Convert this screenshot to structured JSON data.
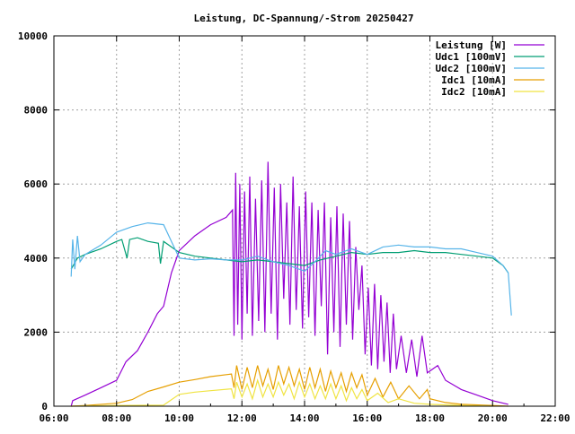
{
  "chart_data": {
    "type": "line",
    "title": "Leistung, DC-Spannung/-Strom 20250427",
    "xlabel": "",
    "ylabel": "",
    "xlim": [
      "06:00",
      "22:00"
    ],
    "ylim": [
      0,
      10000
    ],
    "xticks": [
      "06:00",
      "08:00",
      "10:00",
      "12:00",
      "14:00",
      "16:00",
      "18:00",
      "20:00",
      "22:00"
    ],
    "yticks": [
      "0",
      "2000",
      "4000",
      "6000",
      "8000",
      "10000"
    ],
    "grid": true,
    "legend": "top-right",
    "series": [
      {
        "name": "Leistung [W]",
        "color": "#9400d3",
        "points": [
          [
            "06:33",
            0
          ],
          [
            "06:36",
            150
          ],
          [
            "07:00",
            300
          ],
          [
            "07:30",
            500
          ],
          [
            "08:00",
            700
          ],
          [
            "08:18",
            1200
          ],
          [
            "08:40",
            1500
          ],
          [
            "09:00",
            2000
          ],
          [
            "09:18",
            2500
          ],
          [
            "09:30",
            2700
          ],
          [
            "09:45",
            3600
          ],
          [
            "10:00",
            4200
          ],
          [
            "10:30",
            4600
          ],
          [
            "11:00",
            4900
          ],
          [
            "11:30",
            5100
          ],
          [
            "11:42",
            5300
          ],
          [
            "11:45",
            1900
          ],
          [
            "11:48",
            6300
          ],
          [
            "11:52",
            2200
          ],
          [
            "11:56",
            6000
          ],
          [
            "12:00",
            1800
          ],
          [
            "12:05",
            5800
          ],
          [
            "12:10",
            2500
          ],
          [
            "12:15",
            6200
          ],
          [
            "12:20",
            1900
          ],
          [
            "12:26",
            5600
          ],
          [
            "12:32",
            2300
          ],
          [
            "12:38",
            6100
          ],
          [
            "12:44",
            2000
          ],
          [
            "12:50",
            6600
          ],
          [
            "12:56",
            2500
          ],
          [
            "13:02",
            5900
          ],
          [
            "13:08",
            1800
          ],
          [
            "13:14",
            6000
          ],
          [
            "13:20",
            2900
          ],
          [
            "13:26",
            5500
          ],
          [
            "13:32",
            2200
          ],
          [
            "13:38",
            6200
          ],
          [
            "13:44",
            2600
          ],
          [
            "13:50",
            5400
          ],
          [
            "13:56",
            2100
          ],
          [
            "14:02",
            5800
          ],
          [
            "14:08",
            2400
          ],
          [
            "14:14",
            5500
          ],
          [
            "14:20",
            1900
          ],
          [
            "14:26",
            5300
          ],
          [
            "14:32",
            2700
          ],
          [
            "14:38",
            5500
          ],
          [
            "14:44",
            1400
          ],
          [
            "14:50",
            5100
          ],
          [
            "14:56",
            2000
          ],
          [
            "15:02",
            5400
          ],
          [
            "15:08",
            1600
          ],
          [
            "15:14",
            5200
          ],
          [
            "15:20",
            2200
          ],
          [
            "15:26",
            5000
          ],
          [
            "15:32",
            1800
          ],
          [
            "15:38",
            4300
          ],
          [
            "15:44",
            2600
          ],
          [
            "15:50",
            3800
          ],
          [
            "15:56",
            1400
          ],
          [
            "16:02",
            3200
          ],
          [
            "16:08",
            1100
          ],
          [
            "16:14",
            3300
          ],
          [
            "16:20",
            1000
          ],
          [
            "16:26",
            3000
          ],
          [
            "16:32",
            1200
          ],
          [
            "16:38",
            2800
          ],
          [
            "16:44",
            900
          ],
          [
            "16:50",
            2500
          ],
          [
            "16:56",
            1000
          ],
          [
            "17:05",
            1900
          ],
          [
            "17:15",
            900
          ],
          [
            "17:25",
            1800
          ],
          [
            "17:35",
            800
          ],
          [
            "17:45",
            1900
          ],
          [
            "17:55",
            900
          ],
          [
            "18:15",
            1100
          ],
          [
            "18:30",
            700
          ],
          [
            "19:00",
            450
          ],
          [
            "19:30",
            300
          ],
          [
            "20:00",
            150
          ],
          [
            "20:30",
            50
          ]
        ]
      },
      {
        "name": "Udc1 [100mV]",
        "color": "#009e73",
        "points": [
          [
            "06:33",
            3700
          ],
          [
            "06:45",
            4000
          ],
          [
            "07:00",
            4100
          ],
          [
            "07:30",
            4250
          ],
          [
            "08:00",
            4450
          ],
          [
            "08:10",
            4500
          ],
          [
            "08:20",
            4000
          ],
          [
            "08:25",
            4500
          ],
          [
            "08:40",
            4550
          ],
          [
            "09:00",
            4450
          ],
          [
            "09:20",
            4400
          ],
          [
            "09:24",
            3850
          ],
          [
            "09:30",
            4450
          ],
          [
            "10:00",
            4150
          ],
          [
            "10:30",
            4050
          ],
          [
            "11:00",
            4000
          ],
          [
            "11:30",
            3950
          ],
          [
            "12:00",
            3900
          ],
          [
            "12:30",
            3950
          ],
          [
            "13:00",
            3900
          ],
          [
            "13:30",
            3850
          ],
          [
            "14:00",
            3800
          ],
          [
            "14:30",
            3950
          ],
          [
            "15:00",
            4050
          ],
          [
            "15:30",
            4150
          ],
          [
            "16:00",
            4100
          ],
          [
            "16:30",
            4150
          ],
          [
            "17:00",
            4150
          ],
          [
            "17:30",
            4200
          ],
          [
            "18:00",
            4150
          ],
          [
            "18:30",
            4150
          ],
          [
            "19:00",
            4100
          ],
          [
            "19:30",
            4050
          ],
          [
            "20:00",
            4000
          ],
          [
            "20:20",
            3800
          ],
          [
            "20:30",
            3600
          ]
        ]
      },
      {
        "name": "Udc2 [100mV]",
        "color": "#56b4e9",
        "points": [
          [
            "06:33",
            3500
          ],
          [
            "06:36",
            4500
          ],
          [
            "06:40",
            3700
          ],
          [
            "06:45",
            4600
          ],
          [
            "06:50",
            3900
          ],
          [
            "07:00",
            4100
          ],
          [
            "07:30",
            4350
          ],
          [
            "08:00",
            4700
          ],
          [
            "08:30",
            4850
          ],
          [
            "09:00",
            4950
          ],
          [
            "09:30",
            4900
          ],
          [
            "09:45",
            4450
          ],
          [
            "10:00",
            4000
          ],
          [
            "10:30",
            3950
          ],
          [
            "11:00",
            3980
          ],
          [
            "11:30",
            3950
          ],
          [
            "12:00",
            3950
          ],
          [
            "12:30",
            4050
          ],
          [
            "13:00",
            3900
          ],
          [
            "13:30",
            3800
          ],
          [
            "14:00",
            3650
          ],
          [
            "14:20",
            3900
          ],
          [
            "14:40",
            4200
          ],
          [
            "15:00",
            4100
          ],
          [
            "15:30",
            4250
          ],
          [
            "16:00",
            4100
          ],
          [
            "16:30",
            4300
          ],
          [
            "17:00",
            4350
          ],
          [
            "17:30",
            4300
          ],
          [
            "18:00",
            4300
          ],
          [
            "18:30",
            4250
          ],
          [
            "19:00",
            4250
          ],
          [
            "19:30",
            4150
          ],
          [
            "20:00",
            4050
          ],
          [
            "20:20",
            3800
          ],
          [
            "20:30",
            3600
          ],
          [
            "20:36",
            2450
          ]
        ]
      },
      {
        "name": "Idc1 [10mA]",
        "color": "#e69f00",
        "points": [
          [
            "06:33",
            0
          ],
          [
            "07:00",
            20
          ],
          [
            "08:00",
            80
          ],
          [
            "08:30",
            180
          ],
          [
            "09:00",
            400
          ],
          [
            "09:30",
            520
          ],
          [
            "10:00",
            650
          ],
          [
            "10:30",
            720
          ],
          [
            "11:00",
            800
          ],
          [
            "11:40",
            870
          ],
          [
            "11:45",
            500
          ],
          [
            "11:50",
            1100
          ],
          [
            "12:00",
            450
          ],
          [
            "12:10",
            1050
          ],
          [
            "12:20",
            500
          ],
          [
            "12:30",
            1100
          ],
          [
            "12:40",
            550
          ],
          [
            "12:50",
            1000
          ],
          [
            "13:00",
            450
          ],
          [
            "13:10",
            1100
          ],
          [
            "13:20",
            600
          ],
          [
            "13:30",
            1050
          ],
          [
            "13:40",
            550
          ],
          [
            "13:50",
            1000
          ],
          [
            "14:00",
            450
          ],
          [
            "14:10",
            1050
          ],
          [
            "14:20",
            500
          ],
          [
            "14:30",
            1000
          ],
          [
            "14:40",
            400
          ],
          [
            "14:50",
            950
          ],
          [
            "15:00",
            500
          ],
          [
            "15:10",
            900
          ],
          [
            "15:20",
            400
          ],
          [
            "15:30",
            900
          ],
          [
            "15:40",
            500
          ],
          [
            "15:50",
            850
          ],
          [
            "16:00",
            300
          ],
          [
            "16:15",
            750
          ],
          [
            "16:30",
            250
          ],
          [
            "16:45",
            650
          ],
          [
            "17:00",
            200
          ],
          [
            "17:20",
            550
          ],
          [
            "17:40",
            200
          ],
          [
            "17:55",
            450
          ],
          [
            "18:00",
            200
          ],
          [
            "18:30",
            100
          ],
          [
            "19:00",
            50
          ],
          [
            "20:00",
            20
          ],
          [
            "20:30",
            0
          ]
        ]
      },
      {
        "name": "Idc2 [10mA]",
        "color": "#f0e442",
        "points": [
          [
            "06:33",
            0
          ],
          [
            "08:00",
            20
          ],
          [
            "09:30",
            30
          ],
          [
            "10:00",
            320
          ],
          [
            "10:30",
            380
          ],
          [
            "11:00",
            420
          ],
          [
            "11:40",
            470
          ],
          [
            "11:45",
            200
          ],
          [
            "11:50",
            650
          ],
          [
            "12:00",
            250
          ],
          [
            "12:10",
            600
          ],
          [
            "12:20",
            200
          ],
          [
            "12:30",
            700
          ],
          [
            "12:40",
            250
          ],
          [
            "12:50",
            600
          ],
          [
            "13:00",
            250
          ],
          [
            "13:10",
            650
          ],
          [
            "13:20",
            300
          ],
          [
            "13:30",
            600
          ],
          [
            "13:40",
            200
          ],
          [
            "13:50",
            650
          ],
          [
            "14:00",
            250
          ],
          [
            "14:10",
            600
          ],
          [
            "14:20",
            200
          ],
          [
            "14:30",
            550
          ],
          [
            "14:40",
            200
          ],
          [
            "14:50",
            600
          ],
          [
            "15:00",
            200
          ],
          [
            "15:10",
            550
          ],
          [
            "15:20",
            150
          ],
          [
            "15:30",
            500
          ],
          [
            "15:40",
            200
          ],
          [
            "15:50",
            450
          ],
          [
            "16:00",
            150
          ],
          [
            "16:20",
            350
          ],
          [
            "16:40",
            100
          ],
          [
            "17:00",
            200
          ],
          [
            "17:30",
            80
          ],
          [
            "18:00",
            50
          ],
          [
            "19:00",
            20
          ],
          [
            "20:00",
            0
          ]
        ]
      }
    ]
  }
}
